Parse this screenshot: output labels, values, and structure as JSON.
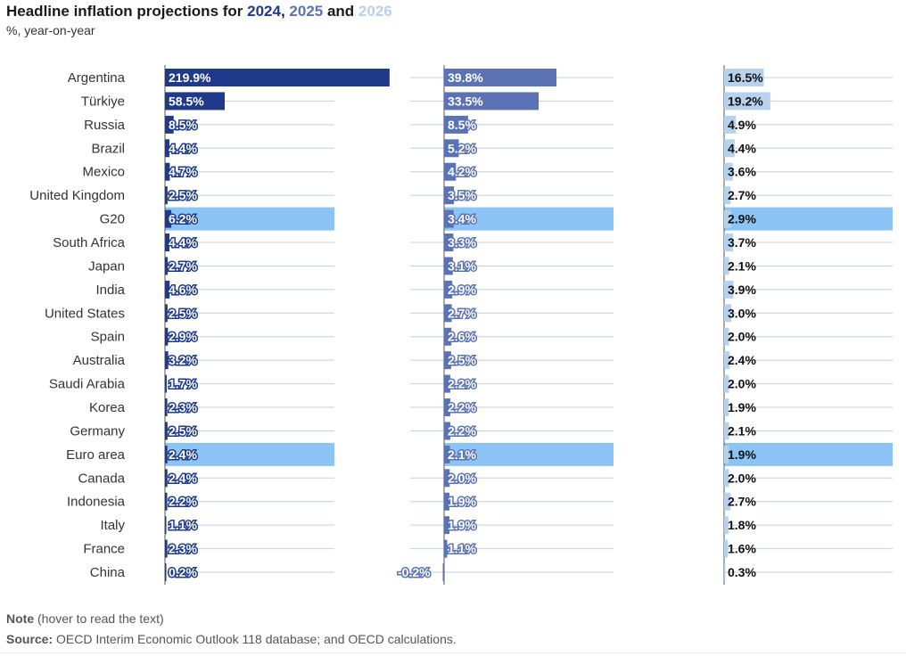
{
  "title": {
    "prefix": "Headline inflation projections for ",
    "y2024": "2024",
    "sep1": ", ",
    "y2025": "2025",
    "sep2": " and ",
    "y2026": "2026"
  },
  "subtitle": "%, year-on-year",
  "note": {
    "label": "Note",
    "text": " (hover to read the text)"
  },
  "source": {
    "label": "Source:",
    "text": " OECD Interim Economic Outlook 118 database; and OECD calculations."
  },
  "colors": {
    "y2024": "#1f3a8a",
    "y2025": "#5b73b4",
    "y2026": "#b8d2ee",
    "highlight": "#8cc4f5",
    "grid": "#c8cedd",
    "axis": "#555555"
  },
  "chart_data": {
    "type": "bar",
    "orientation": "horizontal",
    "categories": [
      "Argentina",
      "Türkiye",
      "Russia",
      "Brazil",
      "Mexico",
      "United Kingdom",
      "G20",
      "South Africa",
      "Japan",
      "India",
      "United States",
      "Spain",
      "Australia",
      "Saudi Arabia",
      "Korea",
      "Germany",
      "Euro area",
      "Canada",
      "Indonesia",
      "Italy",
      "France",
      "China"
    ],
    "highlighted": [
      "G20",
      "Euro area"
    ],
    "series": [
      {
        "name": "2024",
        "values": [
          219.9,
          58.5,
          8.5,
          4.4,
          4.7,
          2.5,
          6.2,
          4.4,
          2.7,
          4.6,
          2.5,
          2.9,
          3.2,
          1.7,
          2.3,
          2.5,
          2.4,
          2.4,
          2.2,
          1.1,
          2.3,
          0.2
        ],
        "labels": [
          "219.9%",
          "58.5%",
          "8.5%",
          "4.4%",
          "4.7%",
          "2.5%",
          "6.2%",
          "4.4%",
          "2.7%",
          "4.6%",
          "2.5%",
          "2.9%",
          "3.2%",
          "1.7%",
          "2.3%",
          "2.5%",
          "2.4%",
          "2.4%",
          "2.2%",
          "1.1%",
          "2.3%",
          "0.2%"
        ],
        "xlim": [
          0,
          220
        ]
      },
      {
        "name": "2025",
        "values": [
          39.8,
          33.5,
          8.5,
          5.2,
          4.2,
          3.5,
          3.4,
          3.3,
          3.1,
          2.9,
          2.7,
          2.6,
          2.5,
          2.2,
          2.2,
          2.2,
          2.1,
          2.0,
          1.9,
          1.9,
          1.1,
          -0.2
        ],
        "labels": [
          "39.8%",
          "33.5%",
          "8.5%",
          "5.2%",
          "4.2%",
          "3.5%",
          "3.4%",
          "3.3%",
          "3.1%",
          "2.9%",
          "2.7%",
          "2.6%",
          "2.5%",
          "2.2%",
          "2.2%",
          "2.2%",
          "2.1%",
          "2.0%",
          "1.9%",
          "1.9%",
          "1.1%",
          "-0.2%"
        ],
        "xlim": [
          -10,
          60
        ]
      },
      {
        "name": "2026",
        "values": [
          16.5,
          19.2,
          4.9,
          4.4,
          3.6,
          2.7,
          2.9,
          3.7,
          2.1,
          3.9,
          3.0,
          2.0,
          2.4,
          2.0,
          1.9,
          2.1,
          1.9,
          2.0,
          2.7,
          1.8,
          1.6,
          0.3
        ],
        "labels": [
          "16.5%",
          "19.2%",
          "4.9%",
          "4.4%",
          "3.6%",
          "2.7%",
          "2.9%",
          "3.7%",
          "2.1%",
          "3.9%",
          "3.0%",
          "2.0%",
          "2.4%",
          "2.0%",
          "1.9%",
          "2.1%",
          "1.9%",
          "2.0%",
          "2.7%",
          "1.8%",
          "1.6%",
          "0.3%"
        ],
        "xlim": [
          0,
          70
        ]
      }
    ],
    "grid": true,
    "legend": "colored years in title"
  }
}
